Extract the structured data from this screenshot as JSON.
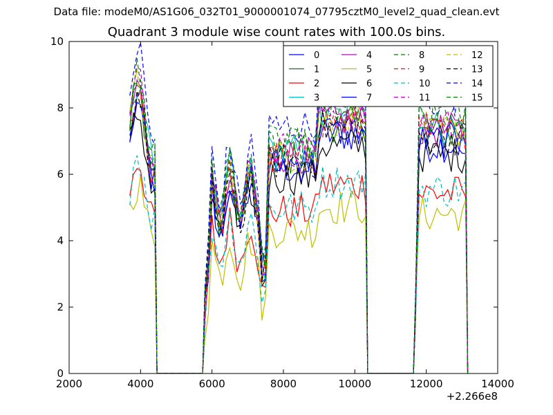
{
  "suptitle": "Data file: modeM0/AS1G06_032T01_9000001074_07795cztM0_level2_quad_clean.evt",
  "chart_data": {
    "type": "line",
    "title": "Quadrant 3 module wise count rates with 100.0s bins.",
    "xlabel": "",
    "ylabel": "",
    "x_offset_label": "+2.266e8",
    "xlim": [
      2000,
      14000
    ],
    "ylim": [
      0,
      10
    ],
    "xticks": [
      2000,
      4000,
      6000,
      8000,
      10000,
      12000,
      14000
    ],
    "xtick_labels": [
      "2000",
      "4000",
      "6000",
      "8000",
      "10000",
      "12000",
      "14000"
    ],
    "yticks": [
      0,
      2,
      4,
      6,
      8,
      10
    ],
    "ytick_labels": [
      "0",
      "2",
      "4",
      "6",
      "8",
      "10"
    ],
    "grid": false,
    "legend_position": "top-right",
    "legend_columns": 4,
    "segments": [
      {
        "start": 3700,
        "end": 4400
      },
      {
        "start": 5800,
        "end": 10300
      },
      {
        "start": 11700,
        "end": 13100
      }
    ],
    "series": [
      {
        "name": "0",
        "color": "#0000ff",
        "dash": "solid",
        "level": 6.6
      },
      {
        "name": "1",
        "color": "#008000",
        "dash": "solid",
        "level": 6.9
      },
      {
        "name": "2",
        "color": "#ff0000",
        "dash": "solid",
        "level": 5.2
      },
      {
        "name": "3",
        "color": "#00bfbf",
        "dash": "solid",
        "level": 7.1
      },
      {
        "name": "4",
        "color": "#bf00bf",
        "dash": "solid",
        "level": 7.0
      },
      {
        "name": "5",
        "color": "#bfbf00",
        "dash": "solid",
        "level": 4.6
      },
      {
        "name": "6",
        "color": "#000000",
        "dash": "solid",
        "level": 6.3
      },
      {
        "name": "7",
        "color": "#0000ff",
        "dash": "solid",
        "level": 6.7
      },
      {
        "name": "8",
        "color": "#008000",
        "dash": "dashed",
        "level": 7.3
      },
      {
        "name": "9",
        "color": "#ff0000",
        "dash": "dashed",
        "level": 6.9
      },
      {
        "name": "10",
        "color": "#00bfbf",
        "dash": "dashed",
        "level": 5.3
      },
      {
        "name": "11",
        "color": "#bf00bf",
        "dash": "dashed",
        "level": 7.2
      },
      {
        "name": "12",
        "color": "#bfbf00",
        "dash": "dashed",
        "level": 7.0
      },
      {
        "name": "13",
        "color": "#000000",
        "dash": "dashed",
        "level": 6.8
      },
      {
        "name": "14",
        "color": "#0000ff",
        "dash": "dashed",
        "level": 7.9
      },
      {
        "name": "15",
        "color": "#008000",
        "dash": "dashed",
        "level": 7.4
      }
    ]
  }
}
